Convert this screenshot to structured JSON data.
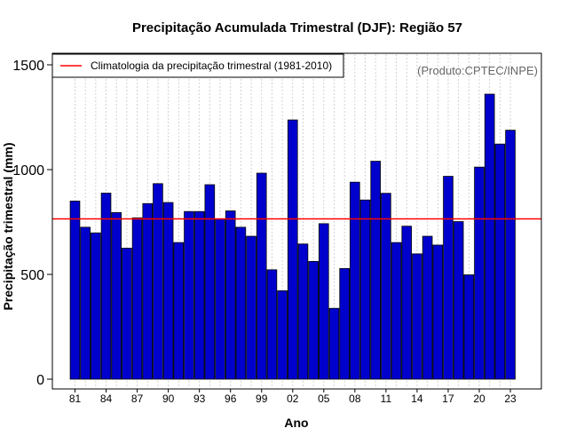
{
  "chart_data": {
    "type": "bar",
    "title": "Precipitação Acumulada Trimestral (DJF): Região 57",
    "xlabel": "Ano",
    "ylabel": "Precipitação trimestral (mm)",
    "credit": "(Produto:CPTEC/INPE)",
    "legend": {
      "placement": "top-left",
      "entries": [
        {
          "label": "Climatologia da precipitação trimestral (1981-2010)",
          "color": "#ff0000"
        }
      ]
    },
    "ylim": [
      0,
      1550
    ],
    "yticks": [
      0,
      500,
      1000,
      1500
    ],
    "ytick_labels": [
      "0",
      "500",
      "1000",
      "1500"
    ],
    "xtick_years": [
      1981,
      1984,
      1987,
      1990,
      1993,
      1996,
      1999,
      2002,
      2005,
      2008,
      2011,
      2014,
      2017,
      2020,
      2023
    ],
    "xtick_labels": [
      "81",
      "84",
      "87",
      "90",
      "93",
      "96",
      "99",
      "02",
      "05",
      "08",
      "11",
      "14",
      "17",
      "20",
      "23"
    ],
    "years": [
      1981,
      1982,
      1983,
      1984,
      1985,
      1986,
      1987,
      1988,
      1989,
      1990,
      1991,
      1992,
      1993,
      1994,
      1995,
      1996,
      1997,
      1998,
      1999,
      2000,
      2001,
      2002,
      2003,
      2004,
      2005,
      2006,
      2007,
      2008,
      2009,
      2010,
      2011,
      2012,
      2013,
      2014,
      2015,
      2016,
      2017,
      2018,
      2019,
      2020,
      2021,
      2022,
      2023
    ],
    "values": [
      850,
      725,
      698,
      888,
      795,
      625,
      770,
      838,
      933,
      843,
      652,
      800,
      800,
      928,
      765,
      803,
      725,
      682,
      983,
      522,
      422,
      1237,
      645,
      562,
      742,
      338,
      528,
      940,
      855,
      1040,
      887,
      652,
      730,
      598,
      682,
      640,
      968,
      752,
      498,
      1012,
      1360,
      1122,
      1188
    ],
    "climatology": 765,
    "colors": {
      "bar": "#0000cd",
      "bar_edge": "#000000",
      "climatology_line": "#ff0000",
      "grid": "#c8c8c8"
    },
    "grid": true
  }
}
